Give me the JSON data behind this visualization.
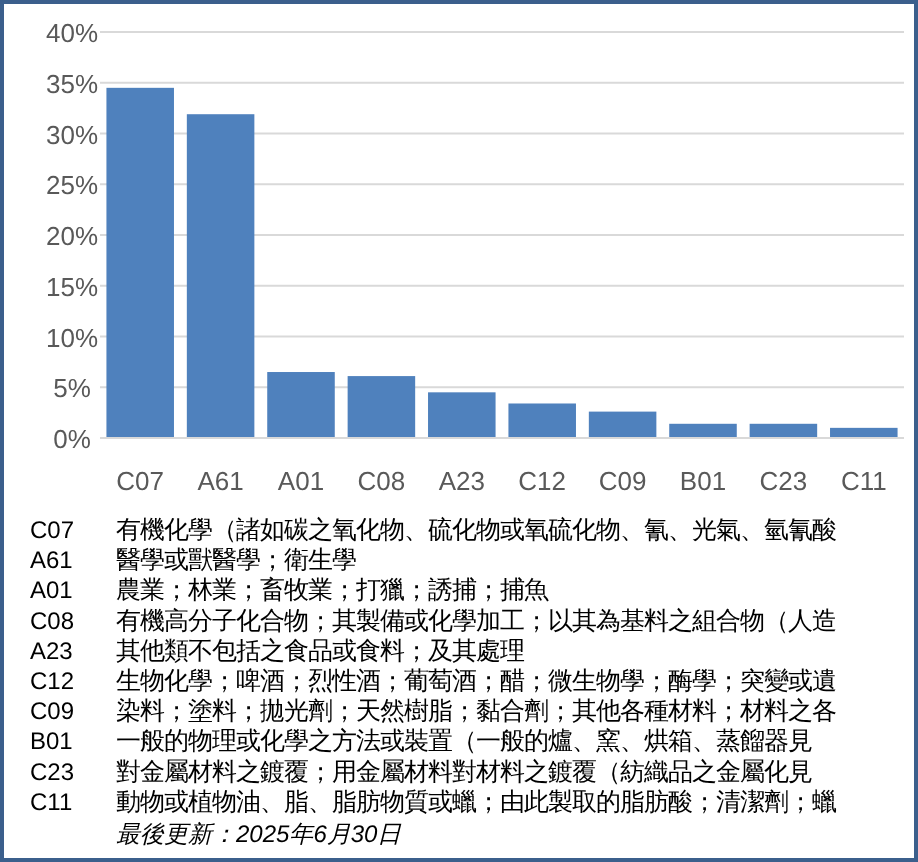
{
  "chart_data": {
    "type": "bar",
    "categories": [
      "C07",
      "A61",
      "A01",
      "C08",
      "A23",
      "C12",
      "C09",
      "B01",
      "C23",
      "C11"
    ],
    "values": [
      34.5,
      31.9,
      6.5,
      6.1,
      4.5,
      3.4,
      2.6,
      1.4,
      1.4,
      1.0
    ],
    "color": "#4f81bd",
    "ylim": [
      0,
      40
    ],
    "yticks": [
      {
        "value": 0,
        "label": "0%"
      },
      {
        "value": 5,
        "label": "5%"
      },
      {
        "value": 10,
        "label": "10%"
      },
      {
        "value": 15,
        "label": "15%"
      },
      {
        "value": 20,
        "label": "20%"
      },
      {
        "value": 25,
        "label": "25%"
      },
      {
        "value": 30,
        "label": "30%"
      },
      {
        "value": 35,
        "label": "35%"
      },
      {
        "value": 40,
        "label": "40%"
      }
    ],
    "grid": "y",
    "annotations": [
      "有機化學（諸如碳之氧化物、硫化物或氧硫化物、氰、光氣、氫氰酸",
      "醫學或獸醫學；衛生學",
      "農業；林業；畜牧業；打獵；誘捕；捕魚",
      "有機高分子化合物；其製備或化學加工；以其為基料之組合物（人造",
      "其他類不包括之食品或食料；及其處理",
      "生物化學；啤酒；烈性酒；葡萄酒；醋；微生物學；酶學；突變或遺",
      "染料；塗料；拋光劑；天然樹脂；黏合劑；其他各種材料；材料之各",
      "一般的物理或化學之方法或裝置（一般的爐、窯、烘箱、蒸餾器見",
      "對金屬材料之鍍覆；用金屬材料對材料之鍍覆（紡織品之金屬化見",
      "動物或植物油、脂、脂肪物質或蠟；由此製取的脂肪酸；清潔劑；蠟",
      "最後更新：2025年6月30日"
    ]
  }
}
